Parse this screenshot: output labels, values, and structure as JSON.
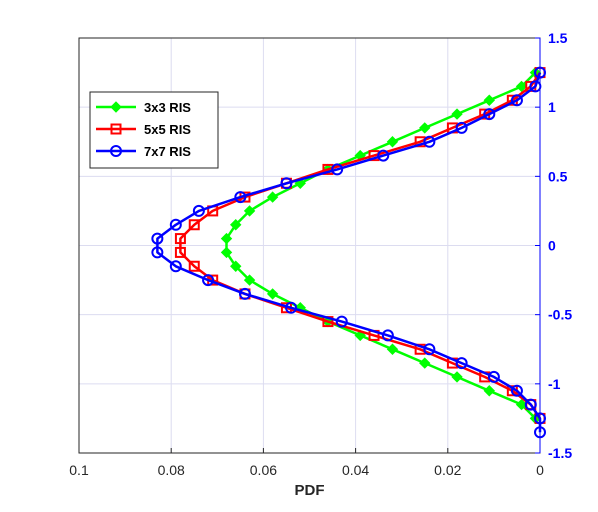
{
  "chart_data": {
    "type": "line",
    "title": "",
    "xlabel": "PDF",
    "ylabel": "",
    "xlim": [
      0.1,
      0
    ],
    "ylim": [
      -1.5,
      1.5
    ],
    "x_reversed": true,
    "y_axis_side": "right",
    "y_axis_color": "#0000ff",
    "grid": true,
    "legend_position": "upper-left",
    "xticks": [
      "0.1",
      "0.08",
      "0.06",
      "0.04",
      "0.02",
      "0"
    ],
    "yticks": [
      "-1.5",
      "-1",
      "-0.5",
      "0",
      "0.5",
      "1",
      "1.5"
    ],
    "series": [
      {
        "name": "3x3 RIS",
        "color": "#00ff00",
        "marker": "diamond",
        "points": [
          [
            0.001,
            1.25
          ],
          [
            0.004,
            1.15
          ],
          [
            0.011,
            1.05
          ],
          [
            0.018,
            0.95
          ],
          [
            0.025,
            0.85
          ],
          [
            0.032,
            0.75
          ],
          [
            0.039,
            0.65
          ],
          [
            0.046,
            0.55
          ],
          [
            0.052,
            0.45
          ],
          [
            0.058,
            0.35
          ],
          [
            0.063,
            0.25
          ],
          [
            0.066,
            0.15
          ],
          [
            0.068,
            0.05
          ],
          [
            0.068,
            -0.05
          ],
          [
            0.066,
            -0.15
          ],
          [
            0.063,
            -0.25
          ],
          [
            0.058,
            -0.35
          ],
          [
            0.052,
            -0.45
          ],
          [
            0.046,
            -0.55
          ],
          [
            0.039,
            -0.65
          ],
          [
            0.032,
            -0.75
          ],
          [
            0.025,
            -0.85
          ],
          [
            0.018,
            -0.95
          ],
          [
            0.011,
            -1.05
          ],
          [
            0.004,
            -1.15
          ],
          [
            0.001,
            -1.25
          ]
        ]
      },
      {
        "name": "5x5 RIS",
        "color": "#ff0000",
        "marker": "square",
        "points": [
          [
            0.0,
            1.25
          ],
          [
            0.002,
            1.15
          ],
          [
            0.006,
            1.05
          ],
          [
            0.012,
            0.95
          ],
          [
            0.019,
            0.85
          ],
          [
            0.026,
            0.75
          ],
          [
            0.036,
            0.65
          ],
          [
            0.046,
            0.55
          ],
          [
            0.055,
            0.45
          ],
          [
            0.064,
            0.35
          ],
          [
            0.071,
            0.25
          ],
          [
            0.075,
            0.15
          ],
          [
            0.078,
            0.05
          ],
          [
            0.078,
            -0.05
          ],
          [
            0.075,
            -0.15
          ],
          [
            0.071,
            -0.25
          ],
          [
            0.064,
            -0.35
          ],
          [
            0.055,
            -0.45
          ],
          [
            0.046,
            -0.55
          ],
          [
            0.036,
            -0.65
          ],
          [
            0.026,
            -0.75
          ],
          [
            0.019,
            -0.85
          ],
          [
            0.012,
            -0.95
          ],
          [
            0.006,
            -1.05
          ],
          [
            0.002,
            -1.15
          ],
          [
            0.0,
            -1.25
          ]
        ]
      },
      {
        "name": "7x7 RIS",
        "color": "#0000ff",
        "marker": "circle",
        "points": [
          [
            0.0,
            1.25
          ],
          [
            0.001,
            1.15
          ],
          [
            0.005,
            1.05
          ],
          [
            0.011,
            0.95
          ],
          [
            0.017,
            0.85
          ],
          [
            0.024,
            0.75
          ],
          [
            0.034,
            0.65
          ],
          [
            0.044,
            0.55
          ],
          [
            0.055,
            0.45
          ],
          [
            0.065,
            0.35
          ],
          [
            0.074,
            0.25
          ],
          [
            0.079,
            0.15
          ],
          [
            0.083,
            0.05
          ],
          [
            0.083,
            -0.05
          ],
          [
            0.079,
            -0.15
          ],
          [
            0.072,
            -0.25
          ],
          [
            0.064,
            -0.35
          ],
          [
            0.054,
            -0.45
          ],
          [
            0.043,
            -0.55
          ],
          [
            0.033,
            -0.65
          ],
          [
            0.024,
            -0.75
          ],
          [
            0.017,
            -0.85
          ],
          [
            0.01,
            -0.95
          ],
          [
            0.005,
            -1.05
          ],
          [
            0.002,
            -1.15
          ],
          [
            0.0,
            -1.25
          ],
          [
            0.0,
            -1.35
          ]
        ]
      }
    ]
  }
}
